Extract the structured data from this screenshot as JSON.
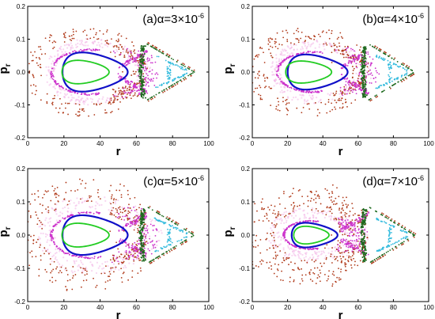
{
  "figure": {
    "layout": "2x2 grid of Poincaré-section scatter panels"
  },
  "chart_data": [
    {
      "type": "scatter",
      "panel_label": "(a)α=3×10",
      "panel_label_exp": "-6",
      "xlabel": "r",
      "ylabel": "p",
      "ylabel_sub": "r",
      "xlim": [
        0,
        100
      ],
      "ylim": [
        -0.2,
        0.2
      ],
      "x_ticks": [
        "0",
        "20",
        "40",
        "60",
        "80",
        "100"
      ],
      "y_ticks": [
        "-0.2",
        "-0.1",
        "0.0",
        "0.1",
        "0.2"
      ],
      "grid": false,
      "chaos_spread": 0.55,
      "series": [
        {
          "role": "inner orbit",
          "color": "#22cc22",
          "center": [
            30,
            0.0
          ],
          "rx": 13,
          "ry": 0.035
        },
        {
          "role": "blue torus",
          "color": "#1010c8",
          "center": [
            34,
            0.0
          ],
          "rx": 18,
          "ry": 0.058
        },
        {
          "role": "magenta layer",
          "color": "#cc33cc"
        },
        {
          "role": "chaotic sea",
          "color": "#b03a1a"
        },
        {
          "role": "separatrix",
          "color": "#1f6a1f"
        },
        {
          "role": "outer islands",
          "color": "#33bbdd"
        }
      ]
    },
    {
      "type": "scatter",
      "panel_label": "(b)α=4×10",
      "panel_label_exp": "-6",
      "xlabel": "r",
      "ylabel": "p",
      "ylabel_sub": "r",
      "xlim": [
        0,
        100
      ],
      "ylim": [
        -0.2,
        0.2
      ],
      "x_ticks": [
        "0",
        "20",
        "40",
        "60",
        "80",
        "100"
      ],
      "y_ticks": [
        "-0.2",
        "-0.1",
        "0.0",
        "0.1",
        "0.2"
      ],
      "grid": false,
      "chaos_spread": 0.7,
      "series": [
        {
          "role": "inner orbit",
          "color": "#22cc22",
          "center": [
            30,
            0.0
          ],
          "rx": 13,
          "ry": 0.033
        },
        {
          "role": "blue torus",
          "color": "#1010c8",
          "center": [
            34,
            0.0
          ],
          "rx": 17,
          "ry": 0.052
        },
        {
          "role": "magenta layer",
          "color": "#cc33cc"
        },
        {
          "role": "chaotic sea",
          "color": "#b03a1a"
        },
        {
          "role": "separatrix",
          "color": "#1f6a1f"
        },
        {
          "role": "outer islands",
          "color": "#33bbdd"
        }
      ]
    },
    {
      "type": "scatter",
      "panel_label": "(c)α=5×10",
      "panel_label_exp": "-6",
      "xlabel": "r",
      "ylabel": "p",
      "ylabel_sub": "r",
      "xlim": [
        0,
        100
      ],
      "ylim": [
        -0.2,
        0.2
      ],
      "x_ticks": [
        "0",
        "20",
        "40",
        "60",
        "80",
        "100"
      ],
      "y_ticks": [
        "-0.2",
        "-0.1",
        "0.0",
        "0.1",
        "0.2"
      ],
      "grid": false,
      "chaos_spread": 1.0,
      "series": [
        {
          "role": "inner orbit",
          "color": "#22cc22",
          "center": [
            30,
            0.0
          ],
          "rx": 13,
          "ry": 0.035
        },
        {
          "role": "blue torus",
          "color": "#1010c8",
          "center": [
            34,
            0.0
          ],
          "rx": 18,
          "ry": 0.058
        },
        {
          "role": "magenta layer",
          "color": "#cc33cc"
        },
        {
          "role": "chaotic sea",
          "color": "#b03a1a"
        },
        {
          "role": "separatrix",
          "color": "#1f6a1f"
        },
        {
          "role": "outer islands",
          "color": "#33bbdd"
        }
      ]
    },
    {
      "type": "scatter",
      "panel_label": "(d)α=7×10",
      "panel_label_exp": "-6",
      "xlabel": "r",
      "ylabel": "p",
      "ylabel_sub": "r",
      "xlim": [
        0,
        100
      ],
      "ylim": [
        -0.2,
        0.2
      ],
      "x_ticks": [
        "0",
        "20",
        "40",
        "60",
        "80",
        "100"
      ],
      "y_ticks": [
        "-0.2",
        "-0.1",
        "0.0",
        "0.1",
        "0.2"
      ],
      "grid": false,
      "chaos_spread": 1.45,
      "series": [
        {
          "role": "inner orbit",
          "color": "#22cc22",
          "center": [
            32,
            0.0
          ],
          "rx": 10,
          "ry": 0.026
        },
        {
          "role": "blue torus",
          "color": "#1010c8",
          "center": [
            33,
            0.0
          ],
          "rx": 13,
          "ry": 0.036
        },
        {
          "role": "magenta layer",
          "color": "#cc33cc"
        },
        {
          "role": "chaotic sea",
          "color": "#b03a1a"
        },
        {
          "role": "separatrix",
          "color": "#1f6a1f"
        },
        {
          "role": "outer islands",
          "color": "#33bbdd"
        }
      ]
    }
  ]
}
